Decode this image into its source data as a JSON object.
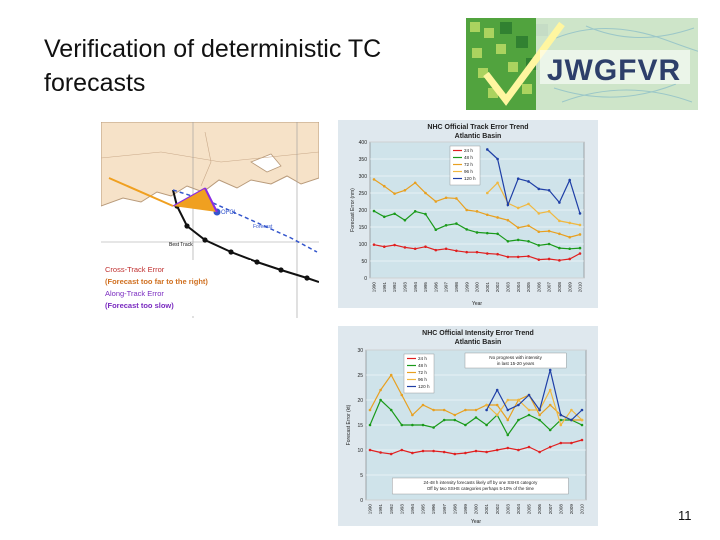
{
  "slide": {
    "title": "Verification of deterministic TC forecasts",
    "page_number": "11"
  },
  "logo": {
    "text": "JWGFVR"
  },
  "map_figure": {
    "label_ofcl": "OFCL",
    "label_forecast": "Forecast",
    "label_best_track": "Best Track",
    "legend_cross_track": "Cross-Track Error",
    "legend_cross_track_note": "(Forecast too far to the right)",
    "legend_along_track": "Along-Track Error",
    "legend_along_track_note": "(Forecast too slow)"
  },
  "chart_data": [
    {
      "type": "line",
      "title": "NHC Official Track Error Trend",
      "subtitle": "Atlantic Basin",
      "ylabel": "Forecast Error (nm)",
      "xlabel": "Year",
      "ylim": [
        0,
        400
      ],
      "yticks": [
        0,
        50,
        100,
        150,
        200,
        250,
        300,
        350,
        400
      ],
      "categories": [
        "1990",
        "1991",
        "1992",
        "1993",
        "1994",
        "1995",
        "1996",
        "1997",
        "1998",
        "1999",
        "2000",
        "2001",
        "2002",
        "2003",
        "2004",
        "2005",
        "2006",
        "2007",
        "2008",
        "2009",
        "2010"
      ],
      "series": [
        {
          "name": "24 h",
          "color": "#e02020",
          "values": [
            98,
            92,
            97,
            90,
            86,
            92,
            82,
            86,
            80,
            76,
            76,
            72,
            70,
            62,
            62,
            64,
            54,
            56,
            52,
            56,
            72
          ]
        },
        {
          "name": "48 h",
          "color": "#1a9a1a",
          "values": [
            197,
            180,
            189,
            170,
            196,
            188,
            142,
            155,
            160,
            143,
            134,
            132,
            130,
            108,
            112,
            108,
            96,
            100,
            88,
            86,
            88
          ]
        },
        {
          "name": "72 h",
          "color": "#e8a020",
          "values": [
            290,
            270,
            248,
            258,
            280,
            250,
            225,
            236,
            234,
            200,
            196,
            186,
            178,
            170,
            148,
            154,
            136,
            138,
            130,
            120,
            128
          ]
        },
        {
          "name": "96 h",
          "color": "#f0b840",
          "values": [
            null,
            null,
            null,
            null,
            null,
            null,
            null,
            null,
            null,
            null,
            null,
            250,
            280,
            220,
            206,
            218,
            190,
            196,
            168,
            162,
            156
          ]
        },
        {
          "name": "120 h",
          "color": "#1f3fa6",
          "values": [
            null,
            null,
            null,
            null,
            null,
            null,
            null,
            null,
            null,
            null,
            null,
            378,
            350,
            215,
            292,
            284,
            262,
            258,
            222,
            288,
            190
          ]
        }
      ],
      "legend_placement": "top-center",
      "grid": true
    },
    {
      "type": "line",
      "title": "NHC Official Intensity Error Trend",
      "subtitle": "Atlantic Basin",
      "ylabel": "Forecast Error (kt)",
      "xlabel": "Year",
      "ylim": [
        0,
        30
      ],
      "yticks": [
        0,
        5,
        10,
        15,
        20,
        25,
        30
      ],
      "categories": [
        "1990",
        "1991",
        "1992",
        "1993",
        "1994",
        "1995",
        "1996",
        "1997",
        "1998",
        "1999",
        "2000",
        "2001",
        "2002",
        "2003",
        "2004",
        "2005",
        "2006",
        "2007",
        "2008",
        "2009",
        "2010"
      ],
      "series": [
        {
          "name": "24 h",
          "color": "#e02020",
          "values": [
            10,
            9.5,
            9.2,
            10,
            9.4,
            9.8,
            9.8,
            9.6,
            9.2,
            9.4,
            9.8,
            9.6,
            10,
            10.4,
            10,
            10.6,
            9.6,
            10.6,
            11.4,
            11.4,
            12
          ]
        },
        {
          "name": "48 h",
          "color": "#1a9a1a",
          "values": [
            15,
            20,
            18,
            15,
            15,
            15,
            14.5,
            16,
            16,
            15,
            16.5,
            15,
            17,
            13,
            16,
            17,
            16,
            14,
            16,
            16,
            15
          ]
        },
        {
          "name": "72 h",
          "color": "#e8a020",
          "values": [
            18,
            22,
            25,
            21,
            17,
            19,
            18,
            18,
            17,
            18,
            18,
            19,
            19,
            16,
            20,
            21,
            17,
            19,
            17,
            16,
            16
          ]
        },
        {
          "name": "96 h",
          "color": "#f0b840",
          "values": [
            null,
            null,
            null,
            null,
            null,
            null,
            null,
            null,
            null,
            null,
            null,
            19,
            17,
            20,
            20,
            18,
            18,
            22,
            15,
            18,
            16
          ]
        },
        {
          "name": "120 h",
          "color": "#1f3fa6",
          "values": [
            null,
            null,
            null,
            null,
            null,
            null,
            null,
            null,
            null,
            null,
            null,
            18,
            22,
            18,
            19,
            21,
            18,
            26,
            17,
            16,
            18
          ]
        }
      ],
      "annotations": [
        "No progress with intensity in last 15-20 years",
        "24-48 h intensity forecasts likely off by one SSHS category",
        "Off by two SSHS categories perhaps 5-10% of the time"
      ],
      "legend_placement": "top-left",
      "grid": true
    }
  ]
}
